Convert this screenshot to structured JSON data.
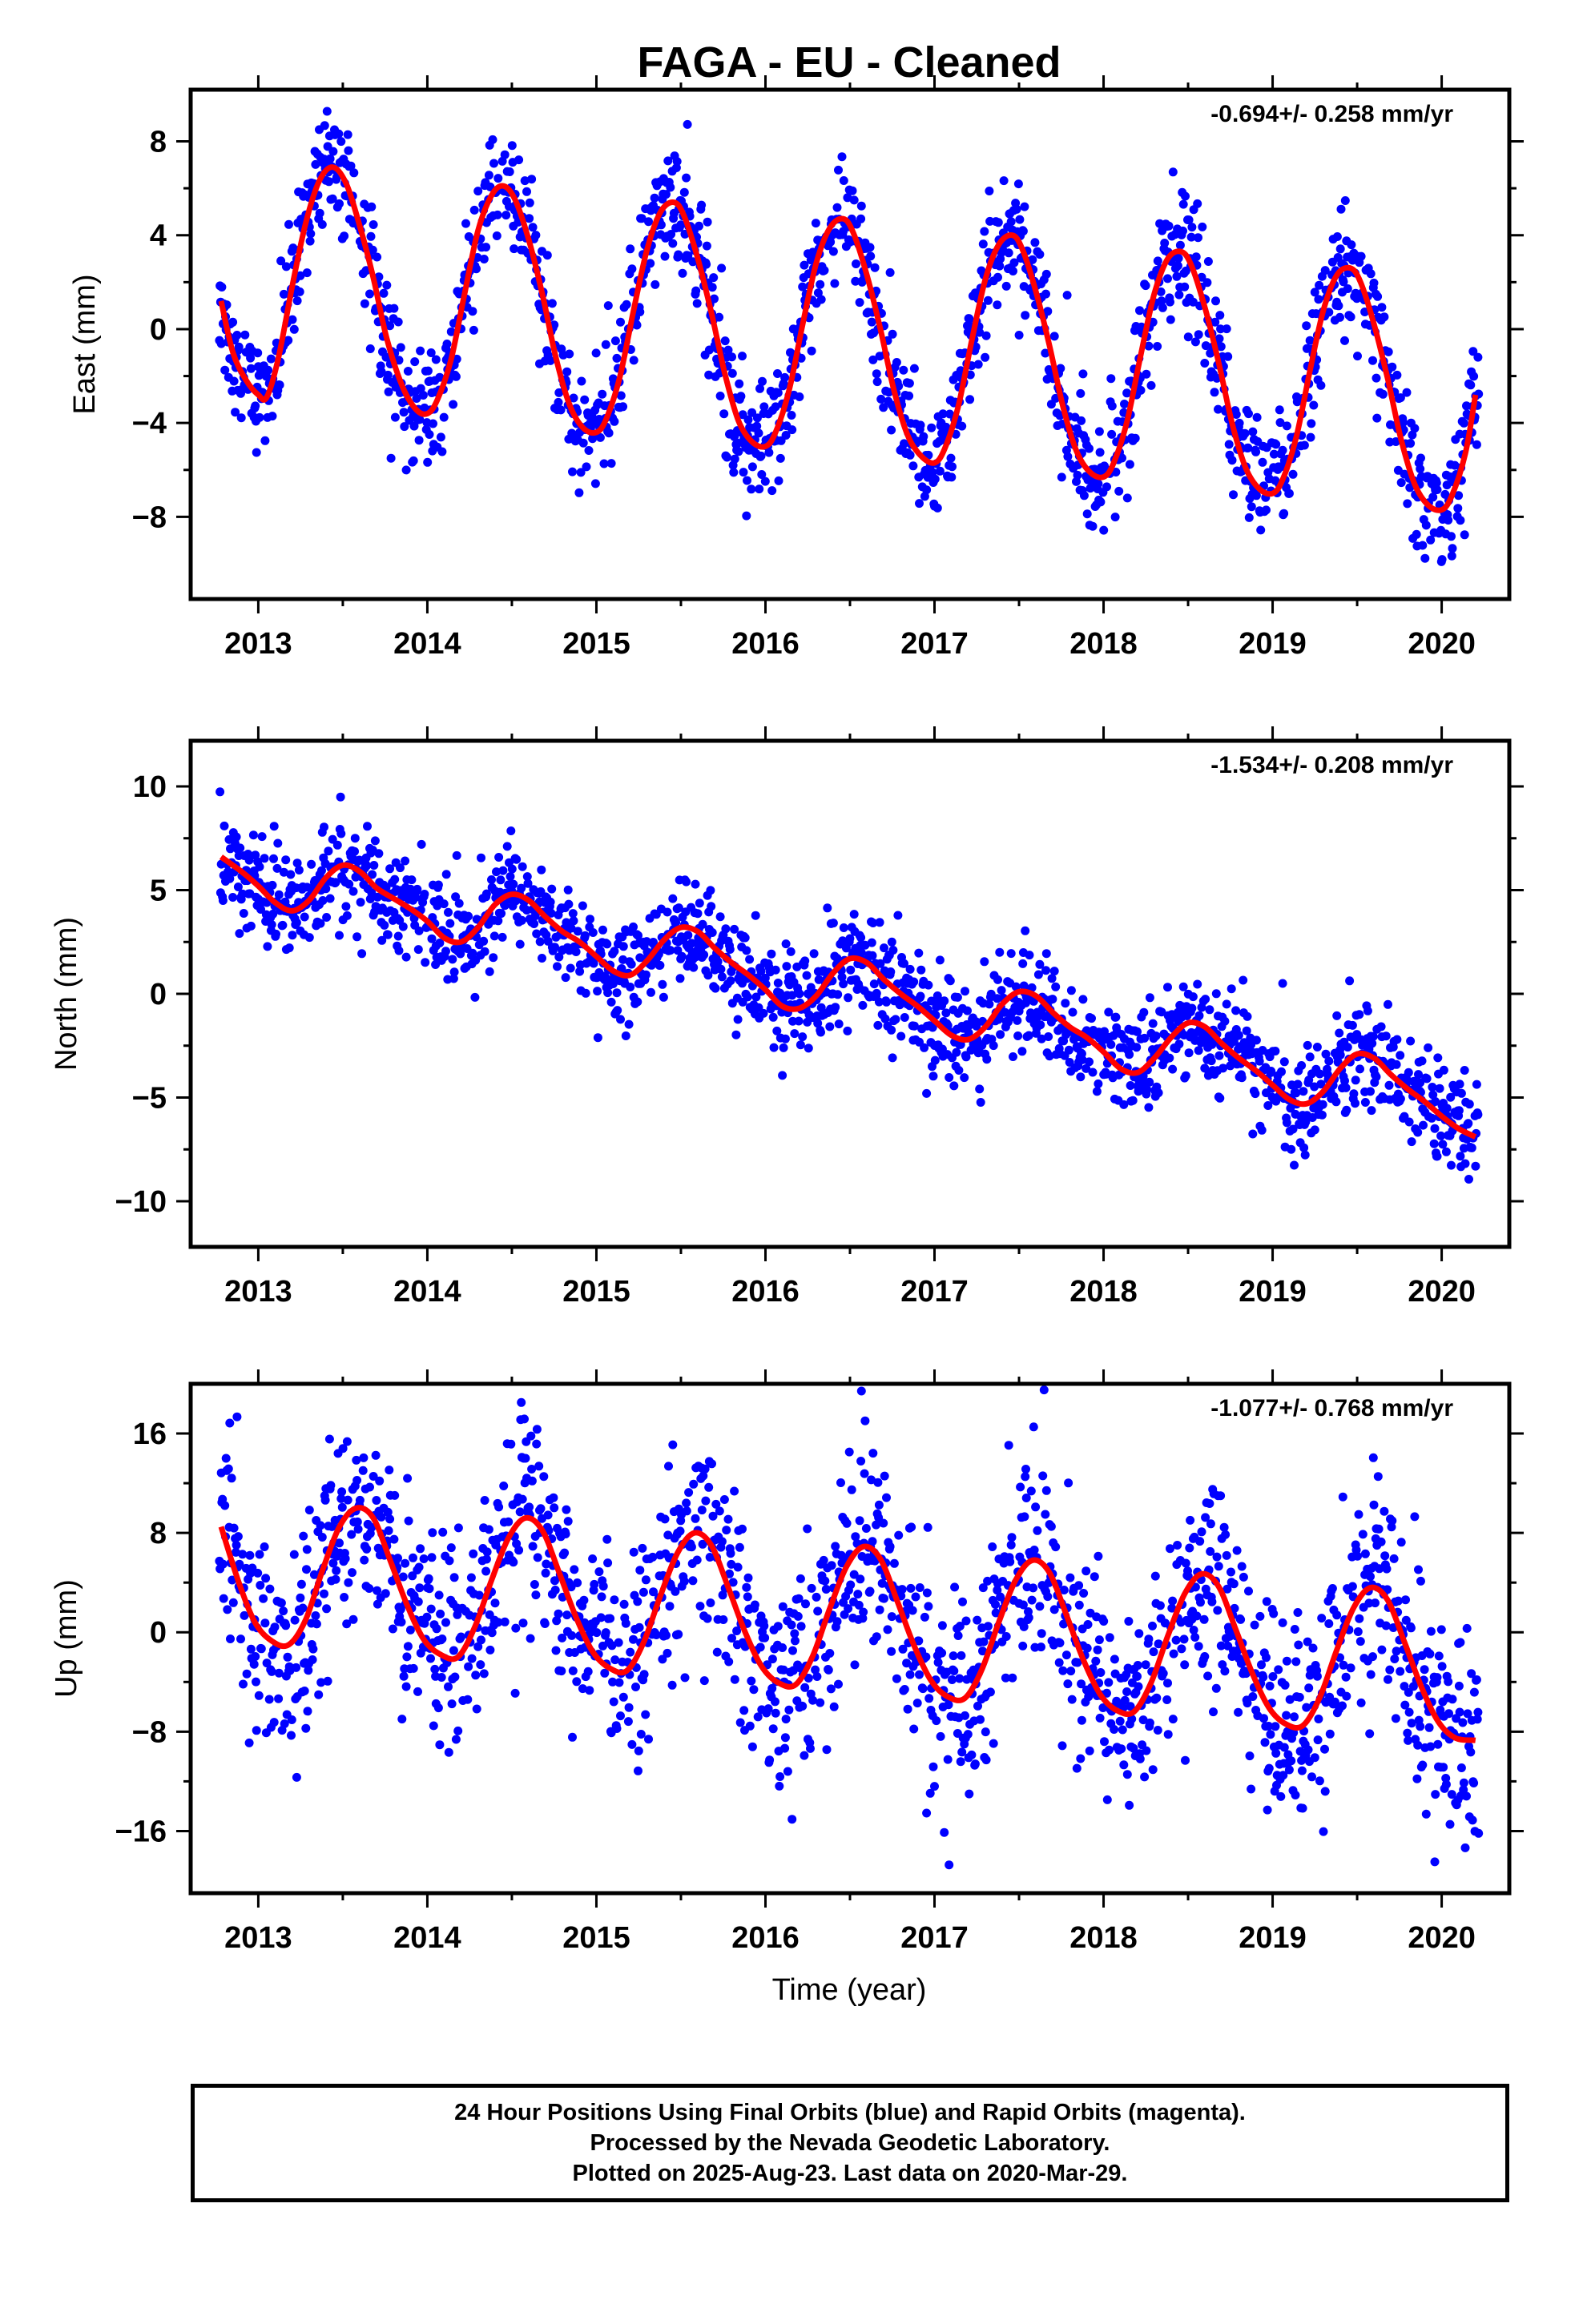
{
  "title": "FAGA  - EU - Cleaned",
  "xlabel": "Time (year)",
  "footer": {
    "line1": "24 Hour Positions Using Final Orbits (blue) and Rapid Orbits (magenta).",
    "line2": "Processed by the Nevada Geodetic Laboratory.",
    "line3": "Plotted on 2025-Aug-23. Last data on 2020-Mar-29."
  },
  "colors": {
    "points": "#0000ff",
    "fit": "#ff0000",
    "frame": "#000000"
  },
  "chart_data": [
    {
      "type": "scatter",
      "ylabel": "East (mm)",
      "annotation": "-0.694+/- 0.258 mm/yr",
      "xlim": [
        2012.6,
        2020.4
      ],
      "ylim": [
        -11.5,
        10.2
      ],
      "xticks": [
        2013,
        2014,
        2015,
        2016,
        2017,
        2018,
        2019,
        2020
      ],
      "yticks": [
        8,
        4,
        0,
        -4,
        -8
      ],
      "series": [
        {
          "values": [
            [
              2012.78,
              1.2
            ],
            [
              2012.85,
              -1.0
            ],
            [
              2012.93,
              -2.2
            ],
            [
              2013.0,
              -2.8
            ],
            [
              2013.05,
              -2.9
            ],
            [
              2013.12,
              -1.2
            ],
            [
              2013.2,
              1.8
            ],
            [
              2013.28,
              4.5
            ],
            [
              2013.36,
              6.3
            ],
            [
              2013.44,
              6.9
            ],
            [
              2013.52,
              6.2
            ],
            [
              2013.6,
              4.4
            ],
            [
              2013.68,
              2.2
            ],
            [
              2013.76,
              -0.4
            ],
            [
              2013.85,
              -2.4
            ],
            [
              2013.93,
              -3.4
            ],
            [
              2014.0,
              -3.6
            ],
            [
              2014.06,
              -3.0
            ],
            [
              2014.14,
              -1.3
            ],
            [
              2014.22,
              1.5
            ],
            [
              2014.3,
              4.2
            ],
            [
              2014.38,
              5.7
            ],
            [
              2014.45,
              6.1
            ],
            [
              2014.52,
              5.5
            ],
            [
              2014.6,
              3.8
            ],
            [
              2014.68,
              1.5
            ],
            [
              2014.76,
              -1.2
            ],
            [
              2014.84,
              -3.2
            ],
            [
              2014.92,
              -4.2
            ],
            [
              2015.0,
              -4.4
            ],
            [
              2015.06,
              -3.8
            ],
            [
              2015.14,
              -2.0
            ],
            [
              2015.22,
              0.8
            ],
            [
              2015.3,
              3.4
            ],
            [
              2015.38,
              5.0
            ],
            [
              2015.46,
              5.4
            ],
            [
              2015.52,
              4.8
            ],
            [
              2015.6,
              3.0
            ],
            [
              2015.68,
              0.7
            ],
            [
              2015.76,
              -1.9
            ],
            [
              2015.84,
              -3.9
            ],
            [
              2015.92,
              -4.8
            ],
            [
              2016.0,
              -5.0
            ],
            [
              2016.06,
              -4.4
            ],
            [
              2016.14,
              -2.6
            ],
            [
              2016.22,
              0.2
            ],
            [
              2016.3,
              2.8
            ],
            [
              2016.38,
              4.3
            ],
            [
              2016.46,
              4.7
            ],
            [
              2016.52,
              4.1
            ],
            [
              2016.6,
              2.3
            ],
            [
              2016.68,
              0.0
            ],
            [
              2016.76,
              -2.6
            ],
            [
              2016.84,
              -4.5
            ],
            [
              2016.92,
              -5.4
            ],
            [
              2017.0,
              -5.7
            ],
            [
              2017.06,
              -5.1
            ],
            [
              2017.14,
              -3.3
            ],
            [
              2017.22,
              -0.5
            ],
            [
              2017.3,
              2.1
            ],
            [
              2017.38,
              3.6
            ],
            [
              2017.46,
              4.0
            ],
            [
              2017.52,
              3.4
            ],
            [
              2017.6,
              1.6
            ],
            [
              2017.68,
              -0.7
            ],
            [
              2017.76,
              -3.3
            ],
            [
              2017.84,
              -5.2
            ],
            [
              2017.92,
              -6.1
            ],
            [
              2018.0,
              -6.3
            ],
            [
              2018.06,
              -5.7
            ],
            [
              2018.14,
              -3.9
            ],
            [
              2018.22,
              -1.1
            ],
            [
              2018.3,
              1.5
            ],
            [
              2018.38,
              3.0
            ],
            [
              2018.46,
              3.3
            ],
            [
              2018.52,
              2.7
            ],
            [
              2018.6,
              0.9
            ],
            [
              2018.68,
              -1.4
            ],
            [
              2018.76,
              -4.0
            ],
            [
              2018.84,
              -5.9
            ],
            [
              2018.92,
              -6.8
            ],
            [
              2019.0,
              -7.0
            ],
            [
              2019.06,
              -6.4
            ],
            [
              2019.14,
              -4.6
            ],
            [
              2019.22,
              -1.8
            ],
            [
              2019.3,
              0.8
            ],
            [
              2019.38,
              2.3
            ],
            [
              2019.46,
              2.6
            ],
            [
              2019.52,
              2.0
            ],
            [
              2019.6,
              0.2
            ],
            [
              2019.68,
              -2.1
            ],
            [
              2019.76,
              -4.7
            ],
            [
              2019.84,
              -6.6
            ],
            [
              2019.92,
              -7.5
            ],
            [
              2020.0,
              -7.7
            ],
            [
              2020.06,
              -7.1
            ],
            [
              2020.14,
              -5.3
            ],
            [
              2020.2,
              -2.8
            ]
          ]
        }
      ]
    },
    {
      "type": "scatter",
      "ylabel": "North (mm)",
      "annotation": "-1.534+/- 0.208 mm/yr",
      "xlim": [
        2012.6,
        2020.4
      ],
      "ylim": [
        -12.2,
        12.2
      ],
      "xticks": [
        2013,
        2014,
        2015,
        2016,
        2017,
        2018,
        2019,
        2020
      ],
      "yticks": [
        10,
        5,
        0,
        -5,
        -10
      ],
      "series": [
        {
          "values": [
            [
              2012.78,
              6.6
            ],
            [
              2012.9,
              5.9
            ],
            [
              2013.0,
              5.2
            ],
            [
              2013.1,
              4.4
            ],
            [
              2013.2,
              4.0
            ],
            [
              2013.3,
              4.5
            ],
            [
              2013.4,
              5.6
            ],
            [
              2013.5,
              6.2
            ],
            [
              2013.6,
              5.9
            ],
            [
              2013.7,
              5.1
            ],
            [
              2013.8,
              4.6
            ],
            [
              2013.9,
              4.1
            ],
            [
              2014.0,
              3.5
            ],
            [
              2014.1,
              2.7
            ],
            [
              2014.2,
              2.5
            ],
            [
              2014.3,
              3.2
            ],
            [
              2014.4,
              4.3
            ],
            [
              2014.5,
              4.8
            ],
            [
              2014.6,
              4.5
            ],
            [
              2014.7,
              3.7
            ],
            [
              2014.8,
              3.0
            ],
            [
              2014.9,
              2.5
            ],
            [
              2015.0,
              1.8
            ],
            [
              2015.1,
              1.1
            ],
            [
              2015.2,
              0.9
            ],
            [
              2015.3,
              1.6
            ],
            [
              2015.4,
              2.6
            ],
            [
              2015.5,
              3.2
            ],
            [
              2015.6,
              3.0
            ],
            [
              2015.7,
              2.2
            ],
            [
              2015.8,
              1.5
            ],
            [
              2015.9,
              0.9
            ],
            [
              2016.0,
              0.2
            ],
            [
              2016.1,
              -0.6
            ],
            [
              2016.2,
              -0.7
            ],
            [
              2016.3,
              -0.1
            ],
            [
              2016.4,
              1.0
            ],
            [
              2016.5,
              1.7
            ],
            [
              2016.6,
              1.5
            ],
            [
              2016.7,
              0.7
            ],
            [
              2016.8,
              0.0
            ],
            [
              2016.9,
              -0.6
            ],
            [
              2017.0,
              -1.3
            ],
            [
              2017.1,
              -2.0
            ],
            [
              2017.2,
              -2.2
            ],
            [
              2017.3,
              -1.6
            ],
            [
              2017.4,
              -0.5
            ],
            [
              2017.5,
              0.1
            ],
            [
              2017.6,
              -0.1
            ],
            [
              2017.7,
              -0.9
            ],
            [
              2017.8,
              -1.6
            ],
            [
              2017.9,
              -2.1
            ],
            [
              2018.0,
              -2.8
            ],
            [
              2018.1,
              -3.6
            ],
            [
              2018.2,
              -3.8
            ],
            [
              2018.3,
              -3.1
            ],
            [
              2018.4,
              -2.1
            ],
            [
              2018.5,
              -1.4
            ],
            [
              2018.6,
              -1.6
            ],
            [
              2018.7,
              -2.4
            ],
            [
              2018.8,
              -3.1
            ],
            [
              2018.9,
              -3.7
            ],
            [
              2019.0,
              -4.4
            ],
            [
              2019.1,
              -5.1
            ],
            [
              2019.2,
              -5.3
            ],
            [
              2019.3,
              -4.7
            ],
            [
              2019.4,
              -3.6
            ],
            [
              2019.5,
              -2.9
            ],
            [
              2019.6,
              -3.1
            ],
            [
              2019.7,
              -3.9
            ],
            [
              2019.8,
              -4.6
            ],
            [
              2019.9,
              -5.2
            ],
            [
              2020.0,
              -5.9
            ],
            [
              2020.1,
              -6.5
            ],
            [
              2020.2,
              -6.9
            ]
          ]
        }
      ]
    },
    {
      "type": "scatter",
      "ylabel": "Up (mm)",
      "annotation": "-1.077+/- 0.768 mm/yr",
      "xlim": [
        2012.6,
        2020.4
      ],
      "ylim": [
        -21.0,
        20.0
      ],
      "xticks": [
        2013,
        2014,
        2015,
        2016,
        2017,
        2018,
        2019,
        2020
      ],
      "yticks": [
        16,
        8,
        0,
        -8,
        -16
      ],
      "series": [
        {
          "values": [
            [
              2012.78,
              8.5
            ],
            [
              2012.88,
              4.2
            ],
            [
              2012.98,
              0.8
            ],
            [
              2013.08,
              -0.7
            ],
            [
              2013.18,
              -1.0
            ],
            [
              2013.28,
              1.0
            ],
            [
              2013.38,
              5.0
            ],
            [
              2013.48,
              8.5
            ],
            [
              2013.58,
              10.0
            ],
            [
              2013.68,
              9.2
            ],
            [
              2013.78,
              5.8
            ],
            [
              2013.88,
              2.2
            ],
            [
              2013.98,
              -0.6
            ],
            [
              2014.08,
              -1.8
            ],
            [
              2014.18,
              -2.0
            ],
            [
              2014.28,
              0.4
            ],
            [
              2014.38,
              4.2
            ],
            [
              2014.48,
              7.6
            ],
            [
              2014.58,
              9.2
            ],
            [
              2014.68,
              8.2
            ],
            [
              2014.78,
              4.8
            ],
            [
              2014.88,
              1.2
            ],
            [
              2014.98,
              -1.6
            ],
            [
              2015.08,
              -2.9
            ],
            [
              2015.18,
              -3.1
            ],
            [
              2015.28,
              -0.8
            ],
            [
              2015.38,
              3.0
            ],
            [
              2015.48,
              6.4
            ],
            [
              2015.58,
              8.0
            ],
            [
              2015.68,
              7.0
            ],
            [
              2015.78,
              3.6
            ],
            [
              2015.88,
              0.0
            ],
            [
              2015.98,
              -2.8
            ],
            [
              2016.08,
              -4.1
            ],
            [
              2016.18,
              -4.2
            ],
            [
              2016.28,
              -1.9
            ],
            [
              2016.38,
              1.9
            ],
            [
              2016.48,
              5.3
            ],
            [
              2016.58,
              6.9
            ],
            [
              2016.68,
              5.9
            ],
            [
              2016.78,
              2.5
            ],
            [
              2016.88,
              -1.1
            ],
            [
              2016.98,
              -3.9
            ],
            [
              2017.08,
              -5.2
            ],
            [
              2017.18,
              -5.3
            ],
            [
              2017.28,
              -3.0
            ],
            [
              2017.38,
              0.8
            ],
            [
              2017.48,
              4.2
            ],
            [
              2017.58,
              5.8
            ],
            [
              2017.68,
              4.8
            ],
            [
              2017.78,
              1.4
            ],
            [
              2017.88,
              -2.2
            ],
            [
              2017.98,
              -5.0
            ],
            [
              2018.08,
              -6.3
            ],
            [
              2018.18,
              -6.4
            ],
            [
              2018.28,
              -4.1
            ],
            [
              2018.38,
              -0.3
            ],
            [
              2018.48,
              3.1
            ],
            [
              2018.58,
              4.7
            ],
            [
              2018.68,
              3.7
            ],
            [
              2018.78,
              0.3
            ],
            [
              2018.88,
              -3.3
            ],
            [
              2018.98,
              -6.1
            ],
            [
              2019.08,
              -7.4
            ],
            [
              2019.18,
              -7.5
            ],
            [
              2019.28,
              -5.2
            ],
            [
              2019.38,
              -1.4
            ],
            [
              2019.48,
              2.0
            ],
            [
              2019.58,
              3.6
            ],
            [
              2019.68,
              2.6
            ],
            [
              2019.78,
              -0.8
            ],
            [
              2019.88,
              -4.4
            ],
            [
              2019.98,
              -7.2
            ],
            [
              2020.08,
              -8.5
            ],
            [
              2020.2,
              -8.7
            ]
          ]
        }
      ]
    }
  ]
}
